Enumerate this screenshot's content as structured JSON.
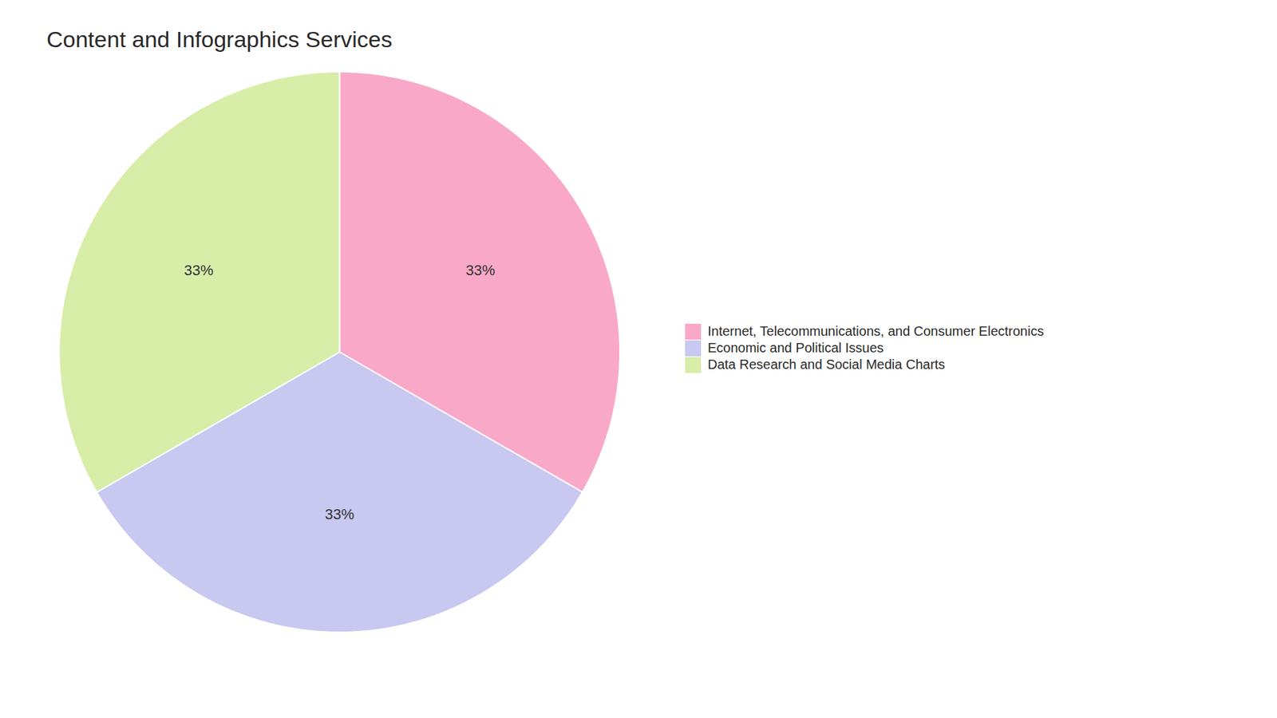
{
  "chart_data": {
    "type": "pie",
    "title": "Content and Infographics Services",
    "categories": [
      "Internet, Telecommunications, and Consumer Electronics",
      "Economic and Political Issues",
      "Data Research and Social Media Charts"
    ],
    "values": [
      33.33,
      33.33,
      33.34
    ],
    "value_labels": [
      "33%",
      "33%",
      "33%"
    ],
    "colors": [
      "#F9A8C8",
      "#C8C8F0",
      "#D8EDA8"
    ],
    "data_labels": true,
    "legend": "right"
  }
}
